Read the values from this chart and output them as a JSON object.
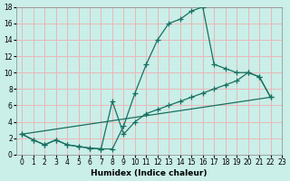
{
  "xlabel": "Humidex (Indice chaleur)",
  "xlim": [
    -0.5,
    23
  ],
  "ylim": [
    0,
    18
  ],
  "xticks": [
    0,
    1,
    2,
    3,
    4,
    5,
    6,
    7,
    8,
    9,
    10,
    11,
    12,
    13,
    14,
    15,
    16,
    17,
    18,
    19,
    20,
    21,
    22,
    23
  ],
  "yticks": [
    0,
    2,
    4,
    6,
    8,
    10,
    12,
    14,
    16,
    18
  ],
  "bg_color": "#caeee8",
  "line_color": "#1a7060",
  "grid_color": "#e8b8b8",
  "line1_x": [
    0,
    1,
    2,
    3,
    4,
    5,
    6,
    7,
    8,
    9,
    10,
    11,
    12,
    13,
    14,
    15,
    16,
    17,
    18,
    19,
    20,
    21,
    22
  ],
  "line1_y": [
    2.5,
    1.8,
    1.2,
    1.8,
    1.2,
    1.0,
    0.8,
    0.7,
    0.7,
    3.5,
    7.5,
    11.0,
    14.0,
    16.0,
    16.5,
    17.5,
    18.0,
    11.0,
    10.5,
    10.0,
    10.0,
    9.5,
    7.0
  ],
  "line2_x": [
    0,
    1,
    2,
    3,
    4,
    5,
    6,
    7,
    8,
    9,
    10,
    11,
    12,
    13,
    14,
    15,
    16,
    17,
    18,
    19,
    20,
    21,
    22
  ],
  "line2_y": [
    2.5,
    1.8,
    1.2,
    1.8,
    1.2,
    1.0,
    0.8,
    0.7,
    6.5,
    2.5,
    4.0,
    5.0,
    5.5,
    6.0,
    6.5,
    7.0,
    7.5,
    8.0,
    8.5,
    9.0,
    10.0,
    9.5,
    7.0
  ],
  "line3_x": [
    0,
    22
  ],
  "line3_y": [
    2.5,
    7.0
  ]
}
